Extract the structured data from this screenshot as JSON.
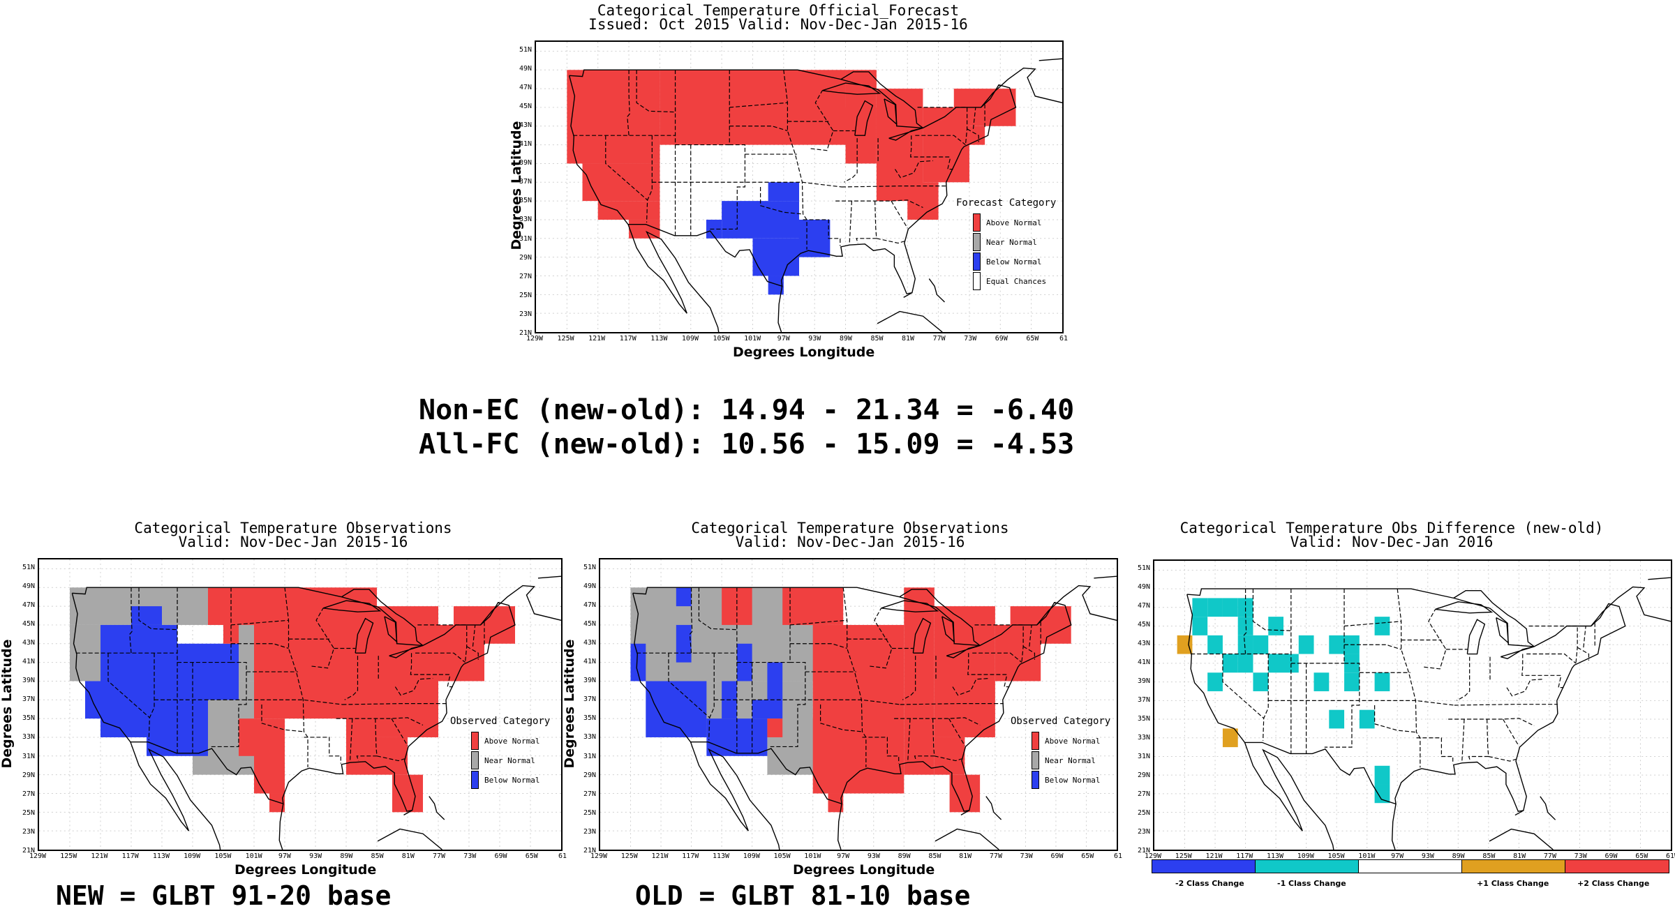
{
  "colors": {
    "above": "#f04040",
    "near": "#a8a8a8",
    "below": "#2c3ff0",
    "equal": "#ffffff",
    "cyan": "#10c8c8",
    "orange": "#e0a020",
    "red2": "#f04040",
    "blue2": "#2c3ff0"
  },
  "stats": {
    "line1": "Non-EC (new-old): 14.94 - 21.34 = -6.40",
    "line2": "All-FC (new-old): 10.56 - 15.09 = -4.53"
  },
  "bases": {
    "new": "NEW = GLBT 91-20 base",
    "old": "OLD = GLBT 81-10 base"
  },
  "axes": {
    "ylabel": "Degrees Latitude",
    "xlabel": "Degrees Longitude",
    "yticks": [
      "21N",
      "23N",
      "25N",
      "27N",
      "29N",
      "31N",
      "33N",
      "35N",
      "37N",
      "39N",
      "41N",
      "43N",
      "45N",
      "47N",
      "49N",
      "51N"
    ],
    "xticks": [
      "129W",
      "125W",
      "121W",
      "117W",
      "113W",
      "109W",
      "105W",
      "101W",
      "97W",
      "93W",
      "89W",
      "85W",
      "81W",
      "77W",
      "73W",
      "69W",
      "65W",
      "61"
    ],
    "xticks_diff": [
      "129W",
      "125W",
      "121W",
      "117W",
      "113W",
      "109W",
      "105W",
      "101W",
      "97W",
      "93W",
      "89W",
      "85W",
      "81W",
      "77W",
      "73W",
      "69W",
      "65W",
      "61W"
    ]
  },
  "chart_data": [
    {
      "type": "heatmap",
      "title": "Categorical Temperature Official_Forecast",
      "subtitle": "Issued: Oct 2015 Valid: Nov-Dec-Jan 2015-16",
      "xlabel": "Degrees Longitude",
      "ylabel": "Degrees Latitude",
      "xlim": [
        -129,
        -61
      ],
      "ylim": [
        21,
        52
      ],
      "legend": {
        "title": "Forecast Category",
        "position": "lower-right",
        "items": [
          {
            "label": "Above Normal",
            "color": "above"
          },
          {
            "label": "Near Normal",
            "color": "near"
          },
          {
            "label": "Below Normal",
            "color": "below"
          },
          {
            "label": "Equal Chances",
            "color": "equal"
          }
        ]
      },
      "regions": [
        {
          "category": "above",
          "area": "Northwest, Great Basin and California (lon -125 to -113, lat 33 to 49)"
        },
        {
          "category": "above",
          "area": "Northern Rockies, Northern Plains, Upper Midwest, Great Lakes (lat 39 to 49)"
        },
        {
          "category": "above",
          "area": "Ohio Valley and Mid-Atlantic to New England (lat 35 to 47)"
        },
        {
          "category": "below",
          "area": "Texas, Oklahoma, Louisiana, southern New Mexico (lat 25 to 37)"
        },
        {
          "category": "equal",
          "area": "Central Plains, Southeast, Southwest remainder"
        }
      ]
    },
    {
      "type": "heatmap",
      "title": "Categorical Temperature Observations",
      "subtitle": "Valid: Nov-Dec-Jan 2015-16",
      "xlabel": "Degrees Longitude",
      "ylabel": "Degrees Latitude",
      "xlim": [
        -129,
        -61
      ],
      "ylim": [
        21,
        52
      ],
      "base": "NEW = GLBT 91-20 base",
      "legend": {
        "title": "Observed Category",
        "position": "lower-right",
        "items": [
          {
            "label": "Above Normal",
            "color": "above"
          },
          {
            "label": "Near Normal",
            "color": "near"
          },
          {
            "label": "Below Normal",
            "color": "below"
          }
        ]
      },
      "regions": [
        {
          "category": "below",
          "area": "Great Basin, Southwest, Northern Rockies (lon -125 to -107, lat 31 to 45)"
        },
        {
          "category": "near",
          "area": "Pacific Northwest, central Rockies, New Mexico, West Texas"
        },
        {
          "category": "above",
          "area": "Great Plains eastward to the Atlantic coast and New England"
        }
      ]
    },
    {
      "type": "heatmap",
      "title": "Categorical Temperature Observations",
      "subtitle": "Valid: Nov-Dec-Jan 2015-16",
      "xlabel": "Degrees Longitude",
      "ylabel": "Degrees Latitude",
      "xlim": [
        -129,
        -61
      ],
      "ylim": [
        21,
        52
      ],
      "base": "OLD = GLBT 81-10 base",
      "legend": {
        "title": "Observed Category",
        "position": "lower-right",
        "items": [
          {
            "label": "Above Normal",
            "color": "above"
          },
          {
            "label": "Near Normal",
            "color": "near"
          },
          {
            "label": "Below Normal",
            "color": "below"
          }
        ]
      },
      "regions": [
        {
          "category": "below",
          "area": "Southwest and scattered Great Basin / Rockies cells"
        },
        {
          "category": "near",
          "area": "Northwest, Great Basin, central Rockies"
        },
        {
          "category": "above",
          "area": "Northern Rockies east through Plains, Midwest, South and East"
        }
      ]
    },
    {
      "type": "heatmap",
      "title": "Categorical Temperature Obs Difference (new-old)",
      "subtitle": "Valid: Nov-Dec-Jan 2016",
      "xlabel": "",
      "ylabel": "",
      "xlim": [
        -129,
        -61
      ],
      "ylim": [
        21,
        52
      ],
      "colorbar": [
        {
          "label": "-2 Class Change",
          "color": "blue2"
        },
        {
          "label": "-1 Class Change",
          "color": "cyan"
        },
        {
          "label": "",
          "color": "equal"
        },
        {
          "label": "+1 Class Change",
          "color": "orange"
        },
        {
          "label": "+2 Class Change",
          "color": "red2"
        }
      ],
      "cells": [
        {
          "lon": -123,
          "lat": 47,
          "cat": "cyan"
        },
        {
          "lon": -121,
          "lat": 47,
          "cat": "cyan"
        },
        {
          "lon": -119,
          "lat": 47,
          "cat": "cyan"
        },
        {
          "lon": -117,
          "lat": 47,
          "cat": "cyan"
        },
        {
          "lon": -117,
          "lat": 45,
          "cat": "cyan"
        },
        {
          "lon": -123,
          "lat": 45,
          "cat": "cyan"
        },
        {
          "lon": -121,
          "lat": 43,
          "cat": "cyan"
        },
        {
          "lon": -117,
          "lat": 43,
          "cat": "cyan"
        },
        {
          "lon": -115,
          "lat": 43,
          "cat": "cyan"
        },
        {
          "lon": -113,
          "lat": 45,
          "cat": "cyan"
        },
        {
          "lon": -119,
          "lat": 41,
          "cat": "cyan"
        },
        {
          "lon": -117,
          "lat": 41,
          "cat": "cyan"
        },
        {
          "lon": -113,
          "lat": 41,
          "cat": "cyan"
        },
        {
          "lon": -111,
          "lat": 41,
          "cat": "cyan"
        },
        {
          "lon": -115,
          "lat": 39,
          "cat": "cyan"
        },
        {
          "lon": -121,
          "lat": 39,
          "cat": "cyan"
        },
        {
          "lon": -109,
          "lat": 43,
          "cat": "cyan"
        },
        {
          "lon": -105,
          "lat": 43,
          "cat": "cyan"
        },
        {
          "lon": -103,
          "lat": 43,
          "cat": "cyan"
        },
        {
          "lon": -103,
          "lat": 41,
          "cat": "cyan"
        },
        {
          "lon": -99,
          "lat": 45,
          "cat": "cyan"
        },
        {
          "lon": -107,
          "lat": 39,
          "cat": "cyan"
        },
        {
          "lon": -103,
          "lat": 39,
          "cat": "cyan"
        },
        {
          "lon": -99,
          "lat": 39,
          "cat": "cyan"
        },
        {
          "lon": -105,
          "lat": 35,
          "cat": "cyan"
        },
        {
          "lon": -101,
          "lat": 35,
          "cat": "cyan"
        },
        {
          "lon": -99,
          "lat": 29,
          "cat": "cyan"
        },
        {
          "lon": -99,
          "lat": 27,
          "cat": "cyan"
        },
        {
          "lon": -125,
          "lat": 43,
          "cat": "orange"
        },
        {
          "lon": -119,
          "lat": 33,
          "cat": "orange"
        }
      ]
    }
  ]
}
